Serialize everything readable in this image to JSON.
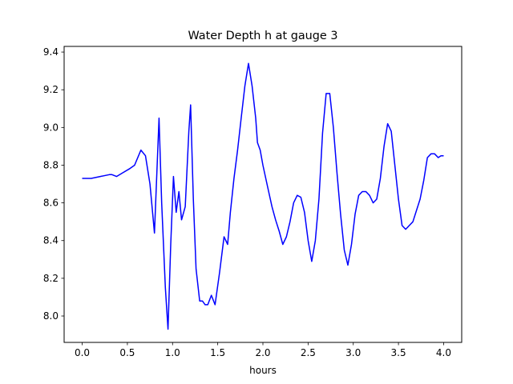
{
  "chart_data": {
    "type": "line",
    "title": "Water Depth h at gauge 3",
    "xlabel": "hours",
    "ylabel": "",
    "xlim": [
      -0.2,
      4.2
    ],
    "ylim": [
      7.86,
      9.43
    ],
    "xticks": [
      0.0,
      0.5,
      1.0,
      1.5,
      2.0,
      2.5,
      3.0,
      3.5,
      4.0
    ],
    "xtick_labels": [
      "0.0",
      "0.5",
      "1.0",
      "1.5",
      "2.0",
      "2.5",
      "3.0",
      "3.5",
      "4.0"
    ],
    "yticks": [
      8.0,
      8.2,
      8.4,
      8.6,
      8.8,
      9.0,
      9.2,
      9.4
    ],
    "ytick_labels": [
      "8.0",
      "8.2",
      "8.4",
      "8.6",
      "8.8",
      "9.0",
      "9.2",
      "9.4"
    ],
    "grid": false,
    "series": [
      {
        "color": "#0000ff",
        "x": [
          0.0,
          0.1,
          0.2,
          0.3,
          0.33,
          0.38,
          0.45,
          0.52,
          0.58,
          0.65,
          0.7,
          0.75,
          0.8,
          0.85,
          0.88,
          0.92,
          0.95,
          0.98,
          1.01,
          1.04,
          1.07,
          1.1,
          1.14,
          1.18,
          1.2,
          1.23,
          1.26,
          1.3,
          1.33,
          1.36,
          1.39,
          1.43,
          1.47,
          1.52,
          1.57,
          1.61,
          1.64,
          1.68,
          1.72,
          1.76,
          1.8,
          1.84,
          1.88,
          1.92,
          1.94,
          1.97,
          2.0,
          2.05,
          2.1,
          2.14,
          2.18,
          2.22,
          2.26,
          2.3,
          2.34,
          2.38,
          2.42,
          2.46,
          2.5,
          2.54,
          2.58,
          2.62,
          2.66,
          2.7,
          2.74,
          2.78,
          2.82,
          2.86,
          2.9,
          2.94,
          2.98,
          3.02,
          3.06,
          3.1,
          3.14,
          3.18,
          3.22,
          3.26,
          3.3,
          3.34,
          3.38,
          3.42,
          3.46,
          3.5,
          3.54,
          3.58,
          3.62,
          3.66,
          3.7,
          3.74,
          3.78,
          3.82,
          3.86,
          3.9,
          3.94,
          3.97,
          4.0
        ],
        "y": [
          8.73,
          8.73,
          8.74,
          8.75,
          8.75,
          8.74,
          8.76,
          8.78,
          8.8,
          8.88,
          8.85,
          8.7,
          8.44,
          9.05,
          8.6,
          8.15,
          7.93,
          8.38,
          8.74,
          8.55,
          8.66,
          8.51,
          8.58,
          8.98,
          9.12,
          8.62,
          8.25,
          8.08,
          8.08,
          8.06,
          8.06,
          8.11,
          8.06,
          8.23,
          8.42,
          8.38,
          8.55,
          8.73,
          8.88,
          9.05,
          9.22,
          9.34,
          9.22,
          9.05,
          8.92,
          8.88,
          8.8,
          8.69,
          8.58,
          8.51,
          8.45,
          8.38,
          8.42,
          8.5,
          8.6,
          8.64,
          8.63,
          8.55,
          8.4,
          8.29,
          8.4,
          8.62,
          8.97,
          9.18,
          9.18,
          9.0,
          8.76,
          8.54,
          8.35,
          8.27,
          8.38,
          8.54,
          8.64,
          8.66,
          8.66,
          8.64,
          8.6,
          8.62,
          8.73,
          8.9,
          9.02,
          8.98,
          8.8,
          8.62,
          8.48,
          8.46,
          8.48,
          8.5,
          8.56,
          8.62,
          8.72,
          8.84,
          8.86,
          8.86,
          8.84,
          8.85,
          8.85
        ]
      }
    ]
  }
}
